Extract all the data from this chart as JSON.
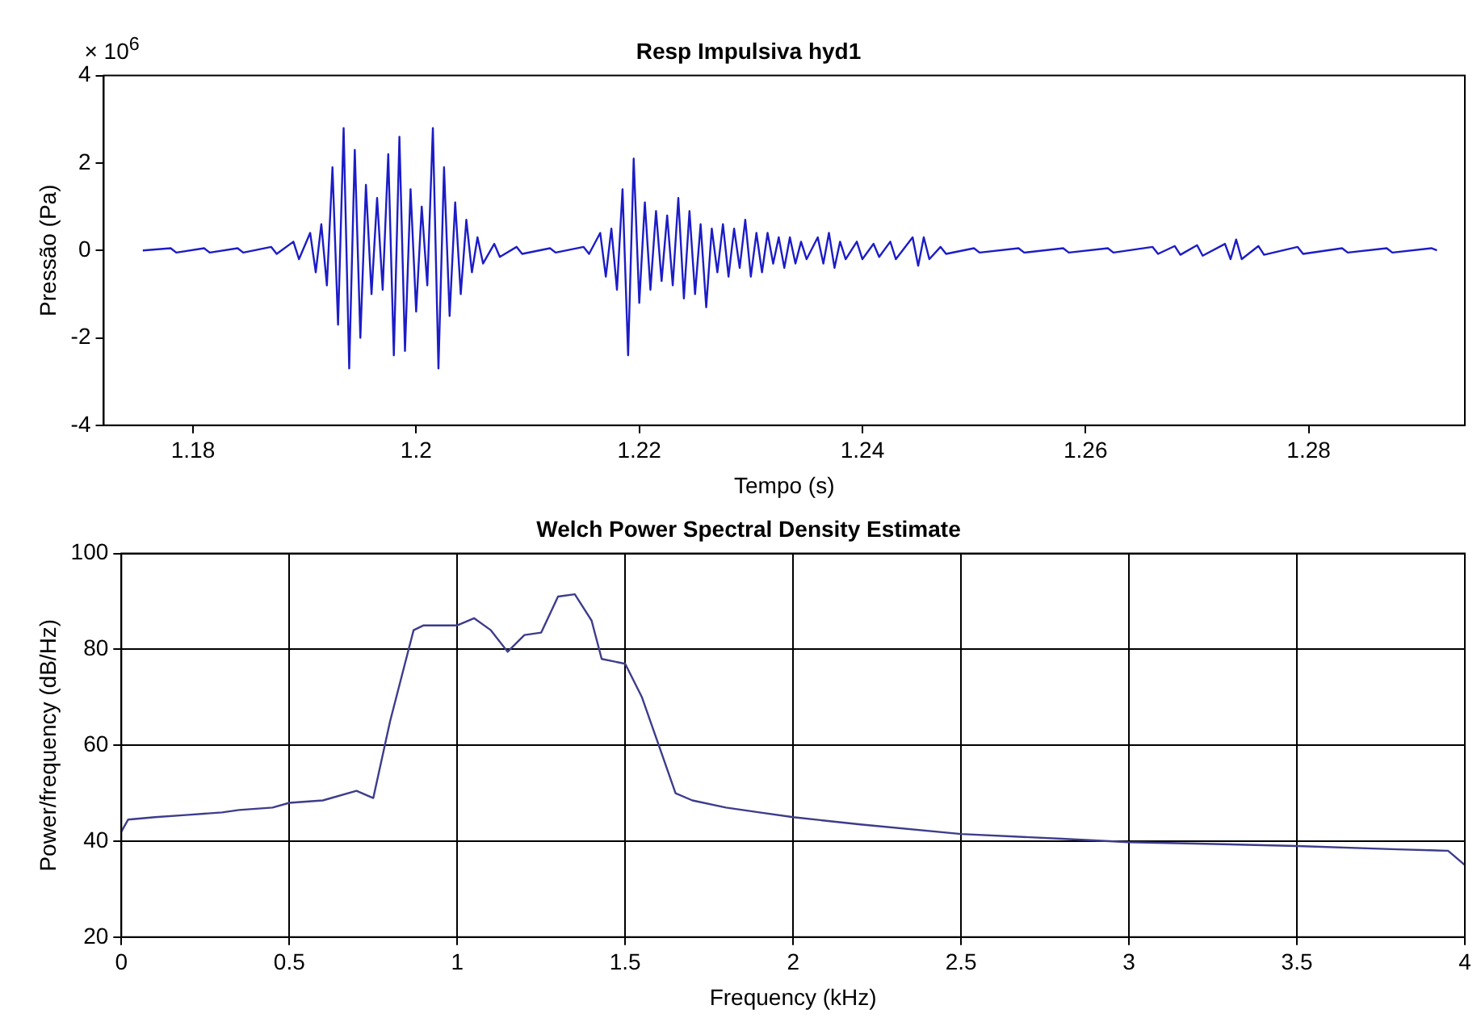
{
  "chart_data": [
    {
      "type": "line",
      "title": "Resp Impulsiva hyd1",
      "xlabel": "Tempo (s)",
      "ylabel": "Pressão (Pa)",
      "annotations": [
        "× 10$^{6}$"
      ],
      "xlim": [
        1.172,
        1.294
      ],
      "xticks": [
        1.18,
        1.2,
        1.22,
        1.24,
        1.26,
        1.28
      ],
      "ylim": [
        -4,
        4
      ],
      "yticks": [
        -4,
        -2,
        0,
        2,
        4
      ],
      "series": [
        {
          "color": "#1c1cc8",
          "x": [
            1.1755,
            1.178,
            1.1785,
            1.181,
            1.1815,
            1.184,
            1.1845,
            1.187,
            1.1875,
            1.189,
            1.1895,
            1.1905,
            1.191,
            1.1915,
            1.192,
            1.1925,
            1.193,
            1.1935,
            1.194,
            1.1945,
            1.195,
            1.1955,
            1.196,
            1.1965,
            1.197,
            1.1975,
            1.198,
            1.1985,
            1.199,
            1.1995,
            1.2,
            1.2005,
            1.201,
            1.2015,
            1.202,
            1.2025,
            1.203,
            1.2035,
            1.204,
            1.2045,
            1.205,
            1.2055,
            1.206,
            1.207,
            1.2075,
            1.209,
            1.2095,
            1.212,
            1.2125,
            1.215,
            1.2155,
            1.2165,
            1.217,
            1.2175,
            1.218,
            1.2185,
            1.219,
            1.2195,
            1.22,
            1.2205,
            1.221,
            1.2215,
            1.222,
            1.2225,
            1.223,
            1.2235,
            1.224,
            1.2245,
            1.225,
            1.2255,
            1.226,
            1.2265,
            1.227,
            1.2275,
            1.228,
            1.2285,
            1.229,
            1.2295,
            1.23,
            1.2305,
            1.231,
            1.2315,
            1.232,
            1.2325,
            1.233,
            1.2335,
            1.234,
            1.2345,
            1.235,
            1.236,
            1.2365,
            1.237,
            1.2375,
            1.238,
            1.2385,
            1.2395,
            1.24,
            1.241,
            1.2415,
            1.2425,
            1.243,
            1.2445,
            1.245,
            1.2455,
            1.246,
            1.247,
            1.2475,
            1.25,
            1.2505,
            1.254,
            1.2545,
            1.258,
            1.2585,
            1.262,
            1.2625,
            1.266,
            1.2665,
            1.268,
            1.2685,
            1.27,
            1.2705,
            1.2725,
            1.273,
            1.2735,
            1.274,
            1.2755,
            1.276,
            1.279,
            1.2795,
            1.283,
            1.2835,
            1.287,
            1.2875,
            1.291,
            1.2915
          ],
          "values": [
            0,
            0.05,
            -0.05,
            0.05,
            -0.05,
            0.05,
            -0.05,
            0.08,
            -0.08,
            0.2,
            -0.2,
            0.4,
            -0.5,
            0.6,
            -0.8,
            1.9,
            -1.7,
            2.8,
            -2.7,
            2.3,
            -2.0,
            1.5,
            -1.0,
            1.2,
            -0.9,
            2.2,
            -2.4,
            2.6,
            -2.3,
            1.4,
            -1.4,
            1.0,
            -0.8,
            2.8,
            -2.7,
            1.9,
            -1.5,
            1.1,
            -1.0,
            0.7,
            -0.5,
            0.3,
            -0.3,
            0.15,
            -0.15,
            0.08,
            -0.08,
            0.05,
            -0.05,
            0.08,
            -0.08,
            0.4,
            -0.6,
            0.5,
            -0.9,
            1.4,
            -2.4,
            2.1,
            -1.2,
            1.1,
            -0.9,
            0.9,
            -0.7,
            0.8,
            -0.8,
            1.2,
            -1.1,
            0.9,
            -1.0,
            0.6,
            -1.3,
            0.5,
            -0.5,
            0.6,
            -0.6,
            0.5,
            -0.4,
            0.7,
            -0.6,
            0.4,
            -0.5,
            0.4,
            -0.3,
            0.3,
            -0.4,
            0.3,
            -0.3,
            0.2,
            -0.2,
            0.3,
            -0.3,
            0.4,
            -0.4,
            0.2,
            -0.2,
            0.2,
            -0.2,
            0.15,
            -0.15,
            0.2,
            -0.2,
            0.3,
            -0.35,
            0.3,
            -0.2,
            0.08,
            -0.08,
            0.05,
            -0.05,
            0.05,
            -0.05,
            0.05,
            -0.05,
            0.05,
            -0.05,
            0.08,
            -0.08,
            0.1,
            -0.1,
            0.12,
            -0.12,
            0.15,
            -0.2,
            0.25,
            -0.2,
            0.1,
            -0.1,
            0.08,
            -0.08,
            0.05,
            -0.05,
            0.05,
            -0.05,
            0.05,
            0
          ]
        }
      ]
    },
    {
      "type": "line",
      "title": "Welch Power Spectral Density Estimate",
      "xlabel": "Frequency (kHz)",
      "ylabel": "Power/frequency (dB/Hz)",
      "grid": true,
      "xlim": [
        0,
        4
      ],
      "xticks": [
        0,
        0.5,
        1,
        1.5,
        2,
        2.5,
        3,
        3.5,
        4
      ],
      "ylim": [
        20,
        100
      ],
      "yticks": [
        20,
        40,
        60,
        80,
        100
      ],
      "series": [
        {
          "color": "#3c3c8c",
          "x": [
            0,
            0.02,
            0.1,
            0.2,
            0.3,
            0.35,
            0.45,
            0.5,
            0.6,
            0.7,
            0.75,
            0.8,
            0.87,
            0.9,
            1.0,
            1.05,
            1.1,
            1.15,
            1.2,
            1.25,
            1.3,
            1.35,
            1.4,
            1.43,
            1.5,
            1.55,
            1.6,
            1.65,
            1.7,
            1.8,
            1.9,
            2.0,
            2.2,
            2.5,
            2.8,
            3.0,
            3.2,
            3.5,
            3.8,
            3.95,
            4.0
          ],
          "values": [
            42,
            44.5,
            45,
            45.5,
            46,
            46.5,
            47,
            48,
            48.5,
            50.5,
            49,
            65,
            84,
            85,
            85,
            86.5,
            84,
            79.5,
            83,
            83.5,
            91,
            91.5,
            86,
            78,
            77,
            70,
            60,
            50,
            48.5,
            47,
            46,
            45,
            43.5,
            41.5,
            40.5,
            39.8,
            39.5,
            39,
            38.3,
            38,
            35
          ]
        }
      ]
    }
  ]
}
